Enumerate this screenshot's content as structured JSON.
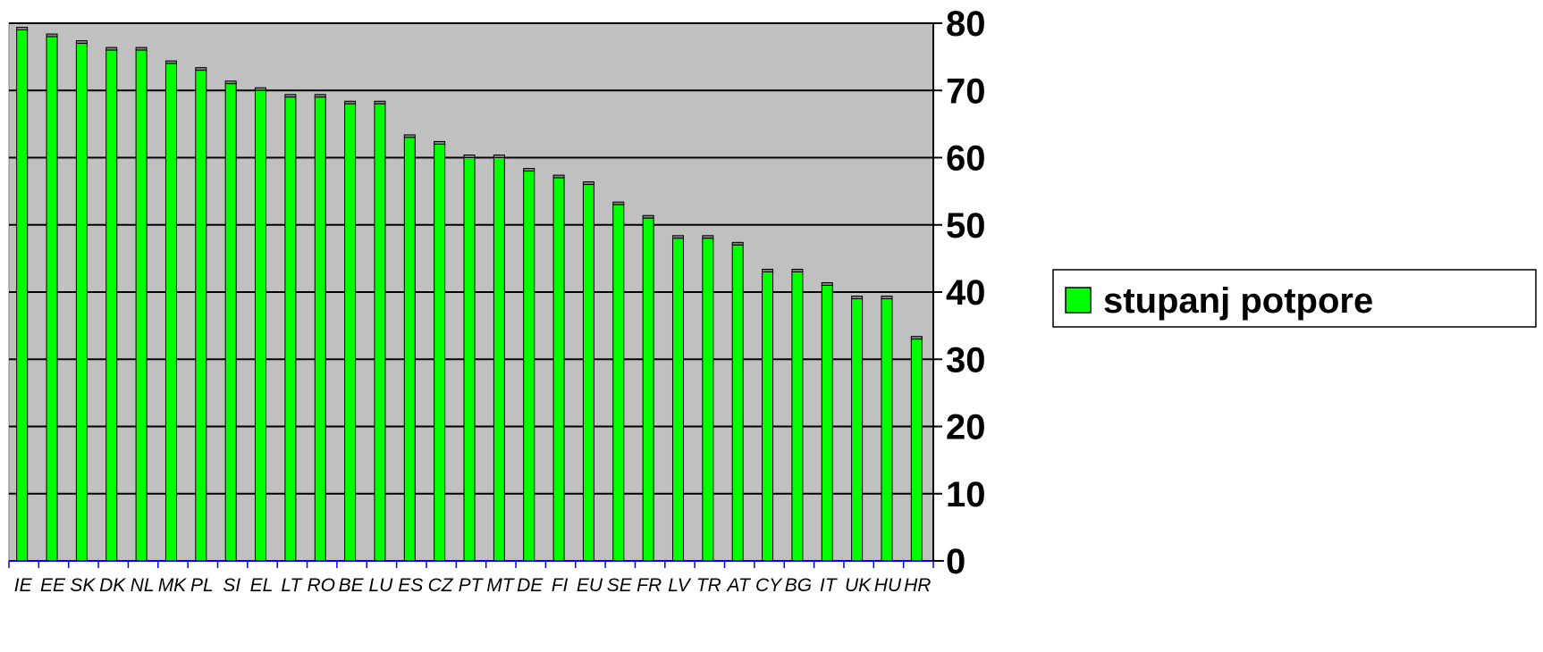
{
  "chart_data": {
    "type": "bar",
    "categories": [
      "IE",
      "EE",
      "SK",
      "DK",
      "NL",
      "MK",
      "PL",
      "SI",
      "EL",
      "LT",
      "RO",
      "BE",
      "LU",
      "ES",
      "CZ",
      "PT",
      "MT",
      "DE",
      "FI",
      "EU",
      "SE",
      "FR",
      "LV",
      "TR",
      "AT",
      "CY",
      "BG",
      "IT",
      "UK",
      "HU",
      "HR"
    ],
    "series": [
      {
        "name": "stupanj potpore",
        "color": "#00ff00",
        "values": [
          79,
          78,
          77,
          76,
          76,
          74,
          73,
          71,
          70,
          69,
          69,
          68,
          68,
          63,
          62,
          60,
          60,
          58,
          57,
          56,
          53,
          51,
          48,
          48,
          47,
          43,
          43,
          41,
          39,
          39,
          33
        ]
      }
    ],
    "title": "",
    "xlabel": "",
    "ylabel": "",
    "ylim": [
      0,
      80
    ],
    "yticks": [
      "0",
      "10",
      "20",
      "30",
      "40",
      "50",
      "60",
      "70",
      "80"
    ],
    "grid": true,
    "y_axis_side": "right",
    "legend_position": "right",
    "plot_background": "#c0c0c0",
    "axis_color": "#0000ff",
    "bar_edge_color": "#000000"
  }
}
